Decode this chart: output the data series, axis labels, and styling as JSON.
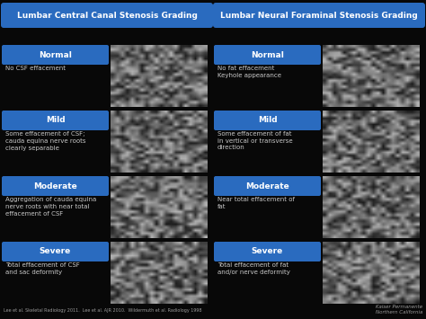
{
  "bg_color": "#080808",
  "title_bg": "#2a6bbf",
  "title_text_color": "#ffffff",
  "btn_color": "#2a6bbf",
  "btn_text_color": "#ffffff",
  "body_text_color": "#c8c8c8",
  "footer_text_color": "#999999",
  "left_title": "Lumbar Central Canal Stenosis Grading",
  "right_title": "Lumbar Neural Foraminal Stenosis Grading",
  "grades": [
    "Normal",
    "Mild",
    "Moderate",
    "Severe"
  ],
  "left_descriptions": [
    "No CSF effacement",
    "Some effacement of CSF;\ncauda equina nerve roots\nclearly separable",
    "Aggregation of cauda equina\nnerve roots with near total\neffacement of CSF",
    "Total effacement of CSF\nand sac deformity"
  ],
  "right_descriptions": [
    "No fat effacement\nKeyhole appearance",
    "Some effacement of fat\nin vertical or transverse\ndirection",
    "Near total effacement of\nfat",
    "Total effacement of fat\nand/or nerve deformity"
  ],
  "footer_left": "Lee et al. Skeletal Radiology 2011.  Lee et al. AJR 2010.  Wildermuth et al. Radiology 1998",
  "footer_right": "Kaiser Permanente\nNorthern California"
}
